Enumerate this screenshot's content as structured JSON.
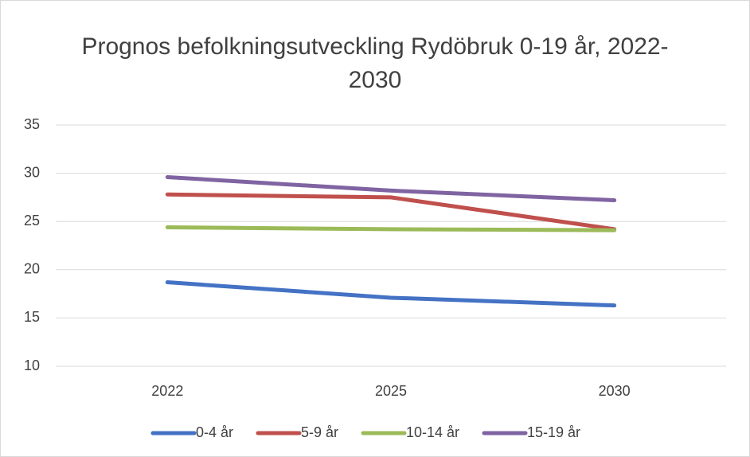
{
  "chart_data": {
    "type": "line",
    "title": "Prognos befolkningsutveckling Rydöbruk 0-19 år, 2022-2030",
    "categories": [
      "2022",
      "2025",
      "2030"
    ],
    "series": [
      {
        "name": "0-4 år",
        "color": "#4472c4",
        "values": [
          18.7,
          17.1,
          16.3
        ]
      },
      {
        "name": "5-9 år",
        "color": "#c0504d",
        "values": [
          27.8,
          27.5,
          24.2
        ]
      },
      {
        "name": "10-14 år",
        "color": "#9bbb59",
        "values": [
          24.4,
          24.2,
          24.1
        ]
      },
      {
        "name": "15-19 år",
        "color": "#8064a2",
        "values": [
          29.6,
          28.2,
          27.2
        ]
      }
    ],
    "ylim": [
      10,
      35
    ],
    "yticks": [
      10,
      15,
      20,
      25,
      30,
      35
    ],
    "grid": true,
    "legend": "bottom"
  }
}
